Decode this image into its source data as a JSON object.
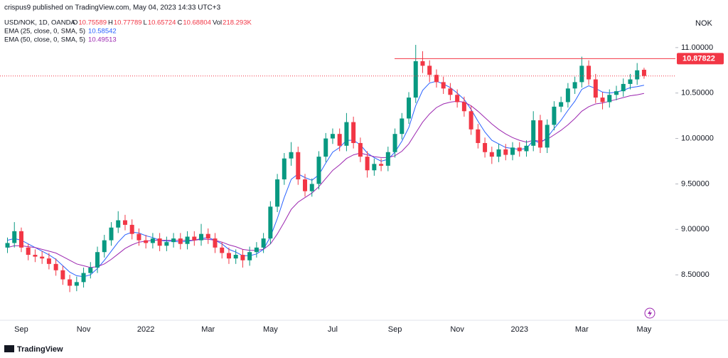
{
  "header": {
    "publisher": "crispus9 published on TradingView.com, May 04, 2023 14:33 UTC+3",
    "brand": "TradingView"
  },
  "chart_data": {
    "type": "candlestick",
    "symbol": "USD/NOK, 1D, OANDA",
    "currency": "NOK",
    "ohlc_labels": [
      "O",
      "H",
      "L",
      "C",
      "Vol"
    ],
    "volume_label": "218.293K",
    "categories": [
      null,
      null,
      "Sep",
      null,
      null,
      null,
      null,
      null,
      null,
      null,
      null,
      "Nov",
      null,
      null,
      null,
      null,
      null,
      null,
      null,
      null,
      "2022",
      null,
      null,
      null,
      null,
      null,
      null,
      null,
      null,
      "Mar",
      null,
      null,
      null,
      null,
      null,
      null,
      null,
      null,
      "May",
      null,
      null,
      null,
      null,
      null,
      null,
      null,
      null,
      "Jul",
      null,
      null,
      null,
      null,
      null,
      null,
      null,
      null,
      "Sep",
      null,
      null,
      null,
      null,
      null,
      null,
      null,
      null,
      "Nov",
      null,
      null,
      null,
      null,
      null,
      null,
      null,
      null,
      "2023",
      null,
      null,
      null,
      null,
      null,
      null,
      null,
      null,
      "Mar",
      null,
      null,
      null,
      null,
      null,
      null,
      null,
      null,
      "May"
    ],
    "open": [
      8.8,
      8.85,
      8.98,
      8.8,
      8.72,
      8.7,
      8.68,
      8.62,
      8.55,
      8.45,
      8.38,
      8.42,
      8.52,
      8.58,
      8.75,
      8.88,
      9.02,
      9.1,
      9.05,
      8.95,
      8.88,
      8.85,
      8.9,
      8.82,
      8.86,
      8.9,
      8.84,
      8.92,
      8.88,
      8.95,
      8.9,
      8.8,
      8.74,
      8.68,
      8.72,
      8.66,
      8.75,
      8.8,
      8.9,
      9.25,
      9.55,
      9.78,
      9.85,
      9.55,
      9.42,
      9.5,
      9.8,
      10.0,
      10.05,
      9.92,
      10.18,
      9.95,
      9.8,
      9.65,
      9.72,
      9.7,
      9.85,
      10.05,
      10.22,
      10.45,
      10.85,
      10.8,
      10.7,
      10.62,
      10.55,
      10.48,
      10.4,
      10.3,
      10.1,
      9.95,
      9.85,
      9.8,
      9.88,
      9.82,
      9.9,
      9.86,
      9.92,
      10.2,
      9.9,
      10.15,
      10.35,
      10.4,
      10.55,
      10.62,
      10.8,
      10.65,
      10.45,
      10.4,
      10.48,
      10.52,
      10.6,
      10.65,
      10.75589
    ],
    "high": [
      8.91,
      9.08,
      9.02,
      8.84,
      8.78,
      8.76,
      8.74,
      8.68,
      8.6,
      8.5,
      8.48,
      8.58,
      8.64,
      8.81,
      8.94,
      9.08,
      9.2,
      9.16,
      9.11,
      9.01,
      8.94,
      8.96,
      8.96,
      8.92,
      8.96,
      8.96,
      8.98,
      8.98,
      9.06,
      9.01,
      8.96,
      8.86,
      8.8,
      8.78,
      8.78,
      8.81,
      8.86,
      8.96,
      9.31,
      9.61,
      9.84,
      9.96,
      9.91,
      9.61,
      9.56,
      9.86,
      10.06,
      10.11,
      10.11,
      10.28,
      10.24,
      10.01,
      9.86,
      9.78,
      9.78,
      9.91,
      10.11,
      10.28,
      10.51,
      11.03,
      10.96,
      10.86,
      10.76,
      10.68,
      10.61,
      10.54,
      10.46,
      10.36,
      10.16,
      10.01,
      9.91,
      9.94,
      9.94,
      9.96,
      9.96,
      9.98,
      10.3,
      10.26,
      10.21,
      10.41,
      10.46,
      10.61,
      10.68,
      10.9,
      10.86,
      10.71,
      10.51,
      10.54,
      10.58,
      10.66,
      10.71,
      10.83,
      10.77789
    ],
    "low": [
      8.74,
      8.8,
      8.75,
      8.66,
      8.64,
      8.62,
      8.56,
      8.49,
      8.39,
      8.31,
      8.32,
      8.36,
      8.46,
      8.52,
      8.69,
      8.82,
      8.96,
      8.99,
      8.89,
      8.82,
      8.79,
      8.79,
      8.76,
      8.76,
      8.8,
      8.78,
      8.78,
      8.82,
      8.82,
      8.84,
      8.74,
      8.68,
      8.62,
      8.62,
      8.58,
      8.6,
      8.69,
      8.74,
      8.84,
      9.19,
      9.49,
      9.7,
      9.49,
      9.36,
      9.36,
      9.44,
      9.74,
      9.94,
      9.86,
      9.86,
      9.89,
      9.74,
      9.57,
      9.59,
      9.64,
      9.64,
      9.79,
      9.99,
      10.16,
      10.39,
      10.72,
      10.62,
      10.56,
      10.49,
      10.42,
      10.34,
      10.24,
      10.04,
      9.89,
      9.79,
      9.72,
      9.74,
      9.76,
      9.76,
      9.8,
      9.8,
      9.86,
      9.84,
      9.84,
      10.09,
      10.29,
      10.34,
      10.49,
      10.56,
      10.59,
      10.39,
      10.32,
      10.34,
      10.42,
      10.46,
      10.54,
      10.59,
      10.65724
    ],
    "close": [
      8.85,
      8.98,
      8.8,
      8.72,
      8.7,
      8.68,
      8.62,
      8.55,
      8.45,
      8.38,
      8.42,
      8.52,
      8.58,
      8.75,
      8.88,
      9.02,
      9.1,
      9.05,
      8.95,
      8.88,
      8.85,
      8.9,
      8.82,
      8.86,
      8.9,
      8.84,
      8.92,
      8.88,
      8.95,
      8.9,
      8.8,
      8.74,
      8.68,
      8.72,
      8.66,
      8.75,
      8.8,
      8.9,
      9.25,
      9.55,
      9.78,
      9.85,
      9.55,
      9.42,
      9.5,
      9.8,
      10.0,
      10.05,
      9.92,
      10.18,
      9.95,
      9.8,
      9.65,
      9.72,
      9.7,
      9.85,
      10.05,
      10.22,
      10.45,
      10.85,
      10.8,
      10.7,
      10.62,
      10.55,
      10.48,
      10.4,
      10.3,
      10.1,
      9.95,
      9.85,
      9.8,
      9.88,
      9.82,
      9.9,
      9.86,
      9.92,
      10.2,
      9.9,
      10.15,
      10.35,
      10.4,
      10.55,
      10.62,
      10.8,
      10.65,
      10.45,
      10.4,
      10.48,
      10.52,
      10.6,
      10.65,
      10.75,
      10.68804
    ],
    "up_color": "#089981",
    "down_color": "#f23645",
    "series": [
      {
        "name": "EMA (25, close, 0, SMA, 5)",
        "color": "#2962ff",
        "values": [
          8.88,
          8.9,
          8.88,
          8.84,
          8.8,
          8.76,
          8.72,
          8.67,
          8.6,
          8.53,
          8.49,
          8.48,
          8.5,
          8.57,
          8.66,
          8.76,
          8.86,
          8.94,
          8.97,
          8.96,
          8.93,
          8.91,
          8.88,
          8.87,
          8.87,
          8.86,
          8.87,
          8.88,
          8.9,
          8.91,
          8.88,
          8.84,
          8.78,
          8.75,
          8.71,
          8.71,
          8.73,
          8.78,
          8.92,
          9.12,
          9.35,
          9.55,
          9.61,
          9.57,
          9.54,
          9.6,
          9.73,
          9.85,
          9.9,
          9.98,
          9.98,
          9.93,
          9.84,
          9.79,
          9.75,
          9.77,
          9.85,
          9.97,
          10.12,
          10.36,
          10.53,
          10.61,
          10.63,
          10.6,
          10.56,
          10.5,
          10.43,
          10.32,
          10.19,
          10.07,
          9.98,
          9.94,
          9.9,
          9.89,
          9.88,
          9.89,
          9.98,
          9.95,
          10.01,
          10.11,
          10.2,
          10.31,
          10.41,
          10.54,
          10.58,
          10.55,
          10.51,
          10.5,
          10.51,
          10.53,
          10.56,
          10.57,
          10.58542
        ]
      },
      {
        "name": "EMA (50, close, 0, SMA, 5)",
        "color": "#9c27b0",
        "values": [
          8.8,
          8.82,
          8.82,
          8.81,
          8.8,
          8.78,
          8.76,
          8.74,
          8.7,
          8.66,
          8.62,
          8.6,
          8.58,
          8.59,
          8.62,
          8.67,
          8.73,
          8.79,
          8.83,
          8.86,
          8.87,
          8.88,
          8.88,
          8.88,
          8.88,
          8.88,
          8.88,
          8.88,
          8.89,
          8.89,
          8.88,
          8.86,
          8.83,
          8.81,
          8.78,
          8.77,
          8.77,
          8.78,
          8.84,
          8.95,
          9.08,
          9.22,
          9.3,
          9.35,
          9.4,
          9.47,
          9.56,
          9.65,
          9.71,
          9.78,
          9.82,
          9.84,
          9.82,
          9.8,
          9.79,
          9.79,
          9.81,
          9.86,
          9.94,
          10.06,
          10.18,
          10.27,
          10.34,
          10.38,
          10.4,
          10.41,
          10.4,
          10.36,
          10.3,
          10.23,
          10.16,
          10.1,
          10.05,
          10.01,
          9.98,
          9.96,
          9.98,
          9.97,
          9.99,
          10.04,
          10.09,
          10.15,
          10.22,
          10.3,
          10.35,
          10.38,
          10.39,
          10.41,
          10.43,
          10.45,
          10.47,
          10.48,
          10.49513
        ]
      }
    ],
    "hline": {
      "value": 10.87822,
      "color": "#f23645"
    },
    "ylim": [
      8.0,
      11.5
    ],
    "yticks": [
      {
        "value": 8.5,
        "label": "8.50000"
      },
      {
        "value": 9,
        "label": "9.00000"
      },
      {
        "value": 9.5,
        "label": "9.50000"
      },
      {
        "value": 10,
        "label": "10.00000"
      },
      {
        "value": 10.5,
        "label": "10.50000"
      },
      {
        "value": 11,
        "label": "11.00000"
      }
    ]
  }
}
